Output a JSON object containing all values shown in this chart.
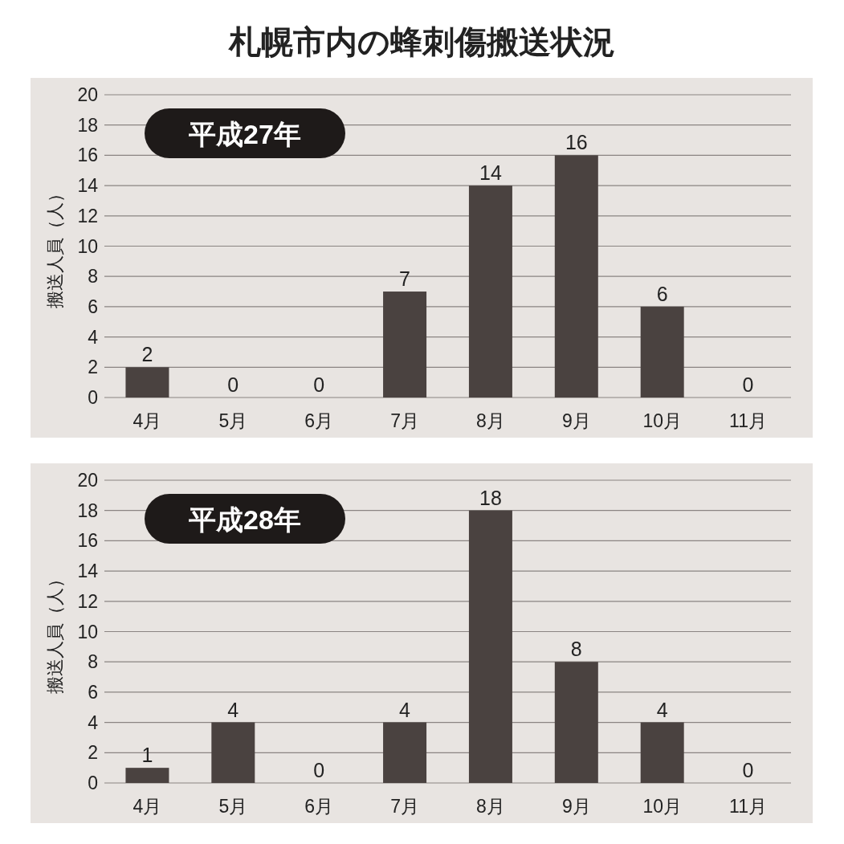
{
  "chart_data": [
    {
      "type": "bar",
      "title": "札幌市内の蜂刺傷搬送状況",
      "subtitle": "平成27年",
      "ylabel": "搬送人員（人）",
      "categories": [
        "4月",
        "5月",
        "6月",
        "7月",
        "8月",
        "9月",
        "10月",
        "11月"
      ],
      "values": [
        2,
        0,
        0,
        7,
        14,
        16,
        6,
        0
      ],
      "color": "#4a4240",
      "ylim": [
        0,
        20
      ],
      "yticks": [
        0,
        2,
        4,
        6,
        8,
        10,
        12,
        14,
        16,
        18,
        20
      ],
      "grid": "y",
      "data_labels": true
    },
    {
      "type": "bar",
      "subtitle": "平成28年",
      "ylabel": "搬送人員（人）",
      "categories": [
        "4月",
        "5月",
        "6月",
        "7月",
        "8月",
        "9月",
        "10月",
        "11月"
      ],
      "values": [
        1,
        4,
        0,
        4,
        18,
        8,
        4,
        0
      ],
      "color": "#4a4240",
      "ylim": [
        0,
        20
      ],
      "yticks": [
        0,
        2,
        4,
        6,
        8,
        10,
        12,
        14,
        16,
        18,
        20
      ],
      "grid": "y",
      "data_labels": true
    }
  ]
}
